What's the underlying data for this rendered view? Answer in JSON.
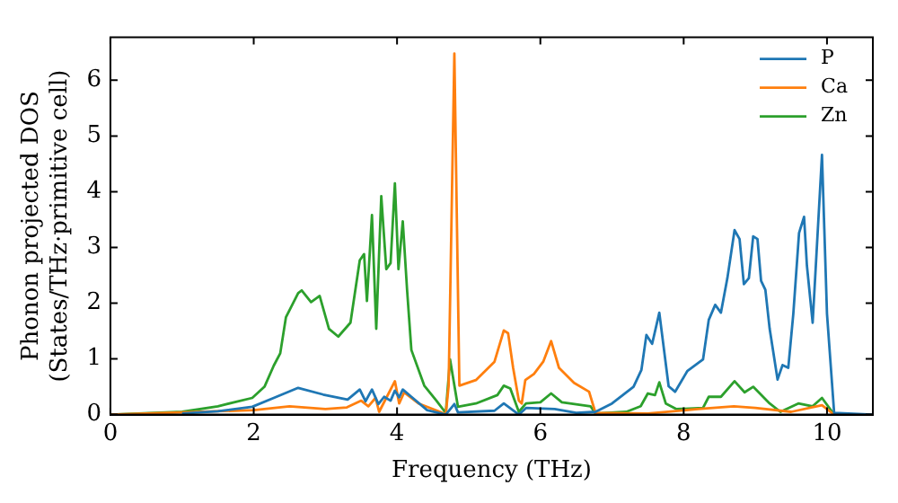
{
  "chart_data": {
    "type": "line",
    "xlabel": "Frequency (THz)",
    "ylabel": "Phonon projected DOS\n(States/THz·primitive cell)",
    "xlim": [
      0,
      10.64
    ],
    "ylim": [
      0,
      6.77
    ],
    "xticks": [
      0,
      2,
      4,
      6,
      8,
      10
    ],
    "yticks": [
      0,
      1,
      2,
      3,
      4,
      5,
      6
    ],
    "grid": false,
    "legend": "top right",
    "marker": "none",
    "line_style": "solid",
    "series": [
      {
        "name": "P",
        "color": "#1f77b4",
        "x": [
          1,
          1.5,
          1.98,
          2.28,
          2.62,
          2.97,
          3.31,
          3.48,
          3.56,
          3.65,
          3.74,
          3.82,
          3.91,
          3.97,
          4.03,
          4.08,
          4.2,
          4.42,
          4.68,
          4.8,
          4.85,
          5.36,
          5.49,
          5.7,
          5.8,
          6.2,
          6.5,
          6.77,
          7.0,
          7.3,
          7.41,
          7.48,
          7.56,
          7.66,
          7.79,
          7.88,
          8.05,
          8.27,
          8.35,
          8.44,
          8.52,
          8.61,
          8.71,
          8.78,
          8.84,
          8.91,
          8.97,
          9.03,
          9.08,
          9.14,
          9.2,
          9.31,
          9.38,
          9.46,
          9.53,
          9.61,
          9.68,
          9.72,
          9.8,
          9.93,
          10.0,
          10.1,
          10.64
        ],
        "values": [
          0.02,
          0.06,
          0.14,
          0.3,
          0.48,
          0.36,
          0.27,
          0.45,
          0.24,
          0.45,
          0.19,
          0.32,
          0.25,
          0.43,
          0.31,
          0.45,
          0.32,
          0.08,
          0,
          0.19,
          0.04,
          0.07,
          0.2,
          0,
          0.12,
          0.1,
          0.03,
          0.05,
          0.2,
          0.5,
          0.8,
          1.43,
          1.27,
          1.83,
          0.51,
          0.41,
          0.78,
          0.99,
          1.7,
          1.97,
          1.83,
          2.45,
          3.31,
          3.15,
          2.34,
          2.45,
          3.2,
          3.15,
          2.4,
          2.24,
          1.54,
          0.63,
          0.89,
          0.84,
          1.81,
          3.26,
          3.55,
          2.67,
          1.65,
          4.66,
          1.81,
          0.03,
          0
        ]
      },
      {
        "name": "Ca",
        "color": "#ff7f0e",
        "x": [
          0,
          2,
          2.5,
          3.0,
          3.3,
          3.5,
          3.6,
          3.7,
          3.75,
          3.85,
          3.97,
          4.03,
          4.1,
          4.3,
          4.6,
          4.68,
          4.72,
          4.8,
          4.87,
          5.1,
          5.36,
          5.49,
          5.55,
          5.62,
          5.7,
          5.74,
          5.79,
          5.91,
          6.04,
          6.15,
          6.26,
          6.47,
          6.68,
          6.77,
          7.5,
          8.2,
          8.7,
          9.0,
          9.5,
          9.93,
          10.1,
          10.64
        ],
        "values": [
          0,
          0.08,
          0.15,
          0.1,
          0.13,
          0.25,
          0.15,
          0.3,
          0.05,
          0.3,
          0.6,
          0.2,
          0.4,
          0.2,
          0.05,
          0,
          0.52,
          6.48,
          0.52,
          0.62,
          0.95,
          1.51,
          1.46,
          0.84,
          0.25,
          0.2,
          0.62,
          0.73,
          0.95,
          1.32,
          0.84,
          0.57,
          0.41,
          0.03,
          0.02,
          0.1,
          0.15,
          0.12,
          0.05,
          0.17,
          0,
          0
        ]
      },
      {
        "name": "Zn",
        "color": "#2ca02c",
        "x": [
          0,
          1.0,
          1.5,
          1.98,
          2.15,
          2.28,
          2.37,
          2.45,
          2.62,
          2.67,
          2.8,
          2.92,
          3.05,
          3.18,
          3.35,
          3.48,
          3.54,
          3.58,
          3.65,
          3.71,
          3.78,
          3.85,
          3.91,
          3.97,
          4.02,
          4.08,
          4.14,
          4.2,
          4.38,
          4.55,
          4.68,
          4.74,
          4.85,
          5.1,
          5.4,
          5.49,
          5.58,
          5.7,
          5.8,
          6.0,
          6.15,
          6.3,
          6.7,
          6.77,
          7.2,
          7.4,
          7.5,
          7.6,
          7.66,
          7.75,
          7.9,
          8.27,
          8.35,
          8.52,
          8.71,
          8.85,
          8.97,
          9.2,
          9.35,
          9.6,
          9.8,
          9.93,
          10.1,
          10.64
        ],
        "values": [
          0,
          0.05,
          0.15,
          0.3,
          0.5,
          0.88,
          1.1,
          1.75,
          2.18,
          2.23,
          2.02,
          2.13,
          1.54,
          1.4,
          1.65,
          2.77,
          2.88,
          2.04,
          3.58,
          1.54,
          3.92,
          2.61,
          2.72,
          4.15,
          2.61,
          3.47,
          2.24,
          1.16,
          0.52,
          0.25,
          0.03,
          0.99,
          0.14,
          0.2,
          0.35,
          0.52,
          0.47,
          0.05,
          0.2,
          0.22,
          0.38,
          0.22,
          0.15,
          0.02,
          0.05,
          0.15,
          0.38,
          0.35,
          0.58,
          0.2,
          0.1,
          0.12,
          0.32,
          0.32,
          0.6,
          0.4,
          0.5,
          0.2,
          0.05,
          0.2,
          0.15,
          0.3,
          0,
          0
        ]
      }
    ]
  }
}
